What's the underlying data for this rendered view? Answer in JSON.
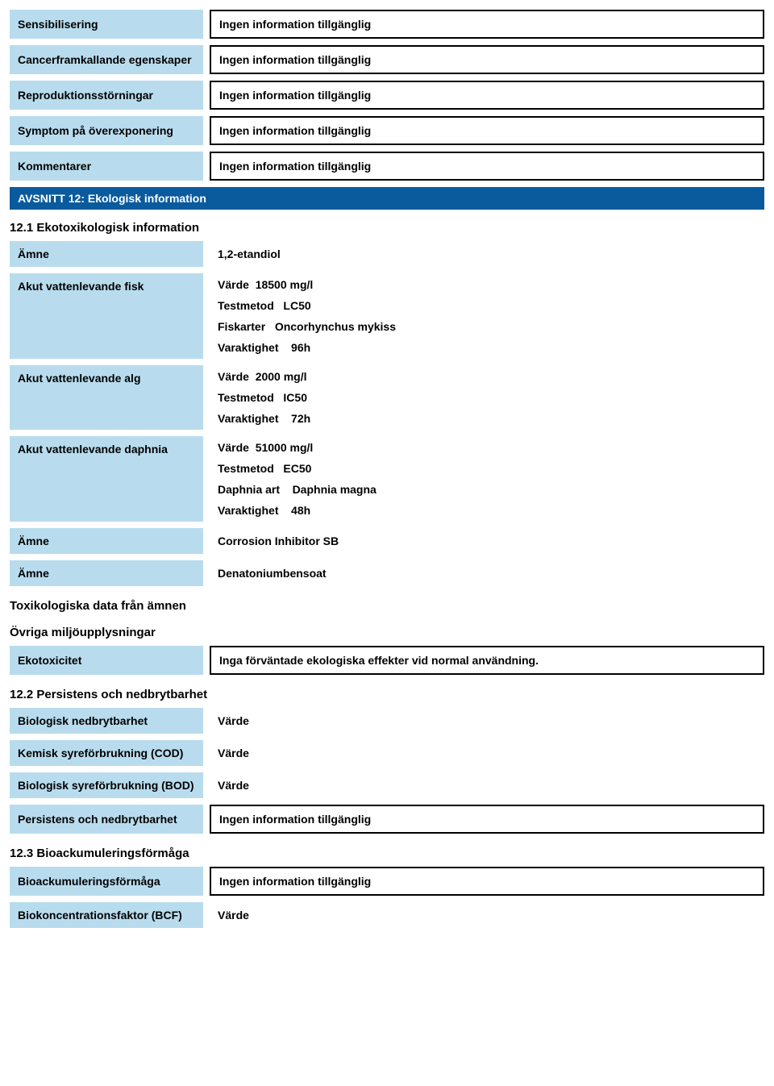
{
  "top_rows": [
    {
      "label": "Sensibilisering",
      "value": "Ingen information tillgänglig"
    },
    {
      "label": "Cancerframkallande egenskaper",
      "value": "Ingen information tillgänglig"
    },
    {
      "label": "Reproduktionsstörningar",
      "value": "Ingen information tillgänglig"
    },
    {
      "label": "Symptom på överexponering",
      "value": "Ingen information tillgänglig"
    },
    {
      "label": "Kommentarer",
      "value": "Ingen information tillgänglig"
    }
  ],
  "section12_header": "AVSNITT 12: Ekologisk information",
  "sub_12_1": "12.1 Ekotoxikologisk information",
  "amne1": {
    "label": "Ämne",
    "value": "1,2-etandiol"
  },
  "fish": {
    "label": "Akut vattenlevande fisk",
    "lines": [
      "Värde  18500 mg/l",
      "Testmetod   LC50",
      "Fiskarter   Oncorhynchus mykiss",
      "Varaktighet    96h"
    ]
  },
  "alg": {
    "label": "Akut vattenlevande alg",
    "lines": [
      "Värde  2000 mg/l",
      "Testmetod   IC50",
      "Varaktighet    72h"
    ]
  },
  "daphnia": {
    "label": "Akut vattenlevande daphnia",
    "lines": [
      "Värde  51000 mg/l",
      "Testmetod   EC50",
      "Daphnia art    Daphnia magna",
      "Varaktighet    48h"
    ]
  },
  "amne2": {
    "label": "Ämne",
    "value": "Corrosion Inhibitor SB"
  },
  "amne3": {
    "label": "Ämne",
    "value": "Denatoniumbensoat"
  },
  "tox_heading": "Toxikologiska data från ämnen",
  "miljo_heading": "Övriga miljöupplysningar",
  "ekotox": {
    "label": "Ekotoxicitet",
    "value": "Inga förväntade ekologiska effekter vid normal användning."
  },
  "sub_12_2": "12.2 Persistens och nedbrytbarhet",
  "bio_ned": {
    "label": "Biologisk nedbrytbarhet",
    "value": "Värde"
  },
  "cod": {
    "label": "Kemisk syreförbrukning (COD)",
    "value": "Värde"
  },
  "bod": {
    "label": "Biologisk syreförbrukning (BOD)",
    "value": "Värde"
  },
  "pers": {
    "label": "Persistens och nedbrytbarhet",
    "value": "Ingen information tillgänglig"
  },
  "sub_12_3": "12.3 Bioackumuleringsförmåga",
  "bioack": {
    "label": "Bioackumuleringsförmåga",
    "value": "Ingen information tillgänglig"
  },
  "bcf": {
    "label": "Biokoncentrationsfaktor (BCF)",
    "value": "Värde"
  }
}
